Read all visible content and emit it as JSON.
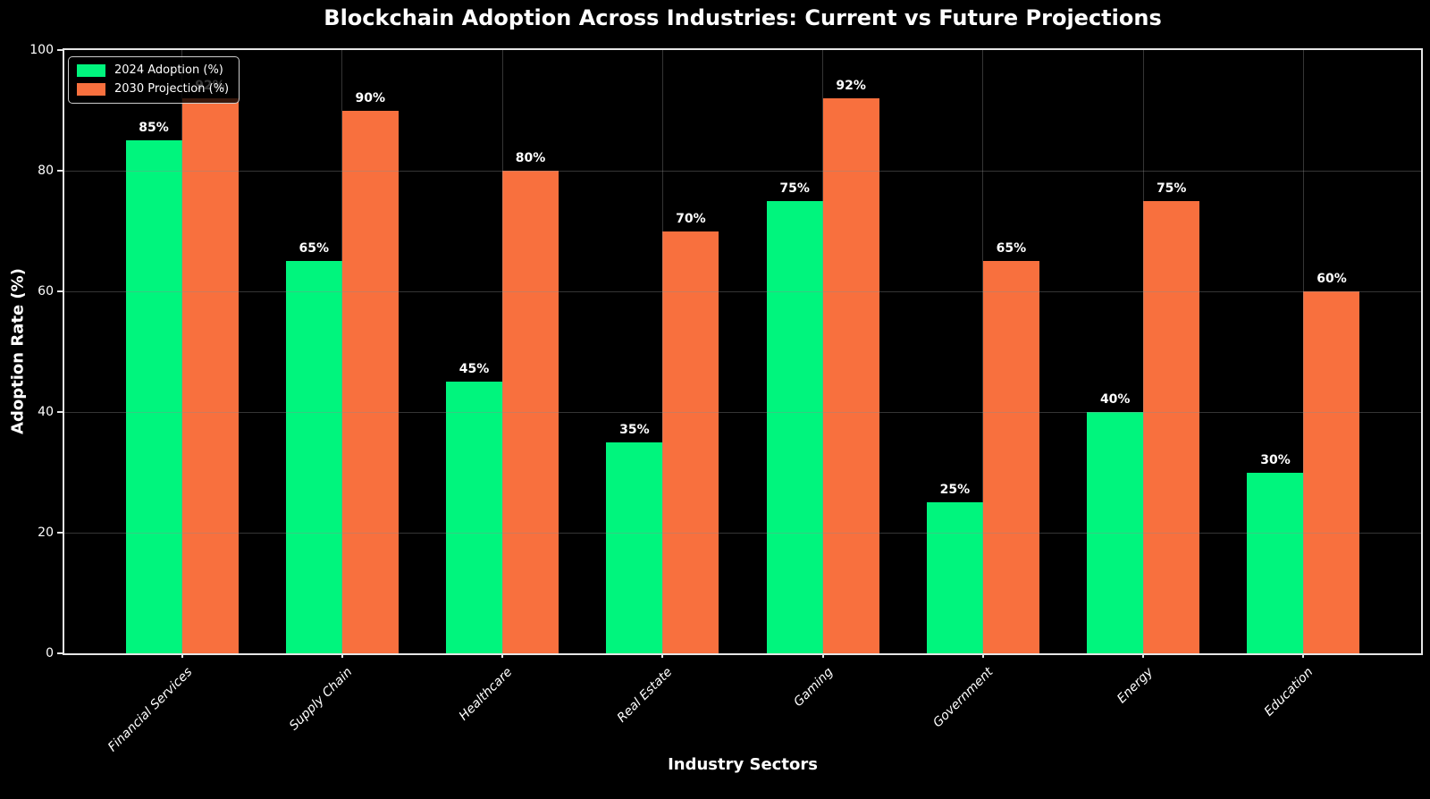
{
  "chart_data": {
    "type": "bar",
    "title": "Blockchain Adoption Across Industries: Current vs Future Projections",
    "xlabel": "Industry Sectors",
    "ylabel": "Adoption Rate (%)",
    "categories": [
      "Financial Services",
      "Supply Chain",
      "Healthcare",
      "Real Estate",
      "Gaming",
      "Government",
      "Energy",
      "Education"
    ],
    "series": [
      {
        "name": "2024 Adoption (%)",
        "color": "#00F57D",
        "values": [
          85,
          65,
          45,
          35,
          75,
          25,
          40,
          30
        ]
      },
      {
        "name": "2030 Projection (%)",
        "color": "#F8703E",
        "values": [
          92,
          90,
          80,
          70,
          92,
          65,
          75,
          60
        ]
      }
    ],
    "value_label_suffix": "%",
    "ylim": [
      0,
      100
    ],
    "yticks": [
      0,
      20,
      40,
      60,
      80,
      100
    ],
    "grid": true,
    "legend_position": "upper left",
    "colors": {
      "background": "#000000",
      "text": "#FFFFFF",
      "spine": "#E6E6E6",
      "grid": "rgba(140,140,140,0.38)"
    }
  }
}
